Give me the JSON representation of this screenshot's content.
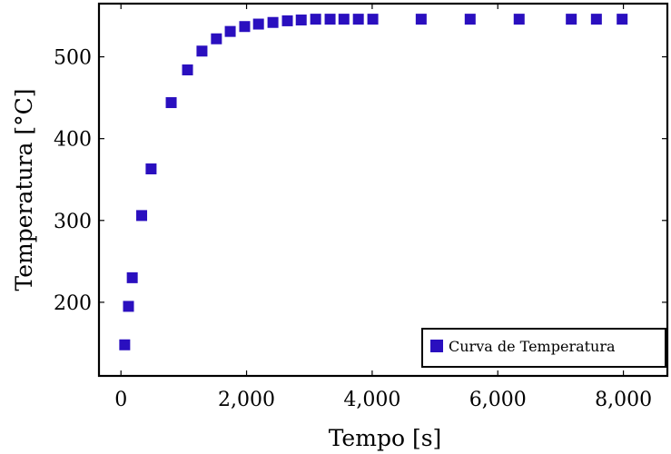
{
  "chart_data": {
    "type": "scatter",
    "title": "",
    "xlabel": "Tempo [s]",
    "ylabel": "Temperatura [°C]",
    "xlim": [
      -350,
      8700
    ],
    "ylim": [
      110,
      565
    ],
    "x_ticks": [
      0,
      2000,
      4000,
      6000,
      8000
    ],
    "x_tick_labels": [
      "0",
      "2,000",
      "4,000",
      "6,000",
      "8,000"
    ],
    "y_ticks": [
      200,
      300,
      400,
      500
    ],
    "y_tick_labels": [
      "200",
      "300",
      "400",
      "500"
    ],
    "grid": false,
    "legend_position": "bottom-right",
    "marker_color": "#2a0fbf",
    "series": [
      {
        "name": "Curva de Temperatura",
        "marker": "square",
        "points": [
          {
            "x": 60,
            "y": 148
          },
          {
            "x": 120,
            "y": 195
          },
          {
            "x": 180,
            "y": 230
          },
          {
            "x": 330,
            "y": 306
          },
          {
            "x": 480,
            "y": 363
          },
          {
            "x": 800,
            "y": 444
          },
          {
            "x": 1060,
            "y": 484
          },
          {
            "x": 1290,
            "y": 507
          },
          {
            "x": 1520,
            "y": 522
          },
          {
            "x": 1740,
            "y": 531
          },
          {
            "x": 1970,
            "y": 537
          },
          {
            "x": 2190,
            "y": 540
          },
          {
            "x": 2420,
            "y": 542
          },
          {
            "x": 2650,
            "y": 544
          },
          {
            "x": 2870,
            "y": 545
          },
          {
            "x": 3100,
            "y": 546
          },
          {
            "x": 3330,
            "y": 546
          },
          {
            "x": 3550,
            "y": 546
          },
          {
            "x": 3780,
            "y": 546
          },
          {
            "x": 4010,
            "y": 546
          },
          {
            "x": 4780,
            "y": 546
          },
          {
            "x": 5560,
            "y": 546
          },
          {
            "x": 6340,
            "y": 546
          },
          {
            "x": 7170,
            "y": 546
          },
          {
            "x": 7570,
            "y": 546
          },
          {
            "x": 7980,
            "y": 546
          }
        ]
      }
    ]
  }
}
